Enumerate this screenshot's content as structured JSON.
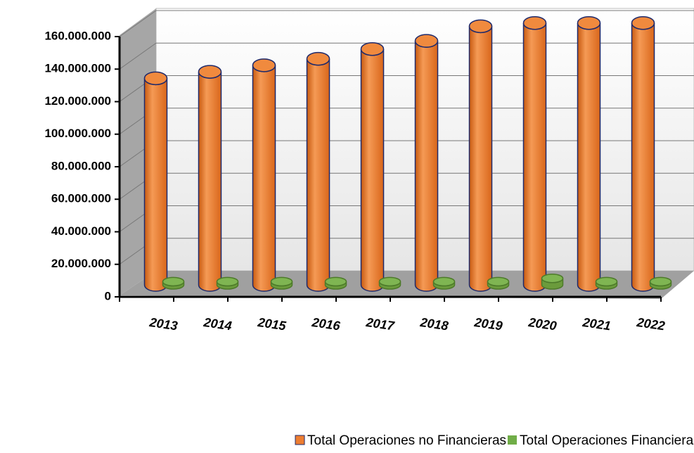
{
  "chart_data": {
    "type": "bar3d",
    "categories": [
      "2013",
      "2014",
      "2015",
      "2016",
      "2017",
      "2018",
      "2019",
      "2020",
      "2021",
      "2022"
    ],
    "series": [
      {
        "name": "Total Operaciones no Financieras",
        "color": "#ed7d31",
        "values": [
          127000000,
          131000000,
          135000000,
          139000000,
          145000000,
          150000000,
          159000000,
          161000000,
          161000000,
          161000000
        ]
      },
      {
        "name": "Total Operaciones Financieras",
        "color": "#70ad47",
        "values": [
          2000000,
          2000000,
          2000000,
          2000000,
          2000000,
          2000000,
          2000000,
          4000000,
          2000000,
          2000000
        ]
      }
    ],
    "ylim": [
      0,
      160000000
    ],
    "yticks": [
      0,
      {
        "value": 20000000,
        "label": "20.000.000"
      },
      {
        "value": 40000000,
        "label": "40.000.000"
      },
      {
        "value": 60000000,
        "label": "60.000.000"
      },
      {
        "value": 80000000,
        "label": "80.000.000"
      },
      {
        "value": 100000000,
        "label": "100.000.000"
      },
      {
        "value": 120000000,
        "label": "120.000.000"
      },
      {
        "value": 140000000,
        "label": "140.000.000"
      },
      {
        "value": 160000000,
        "label": "160.000.000"
      }
    ],
    "grid": true,
    "legend": "bottom"
  }
}
